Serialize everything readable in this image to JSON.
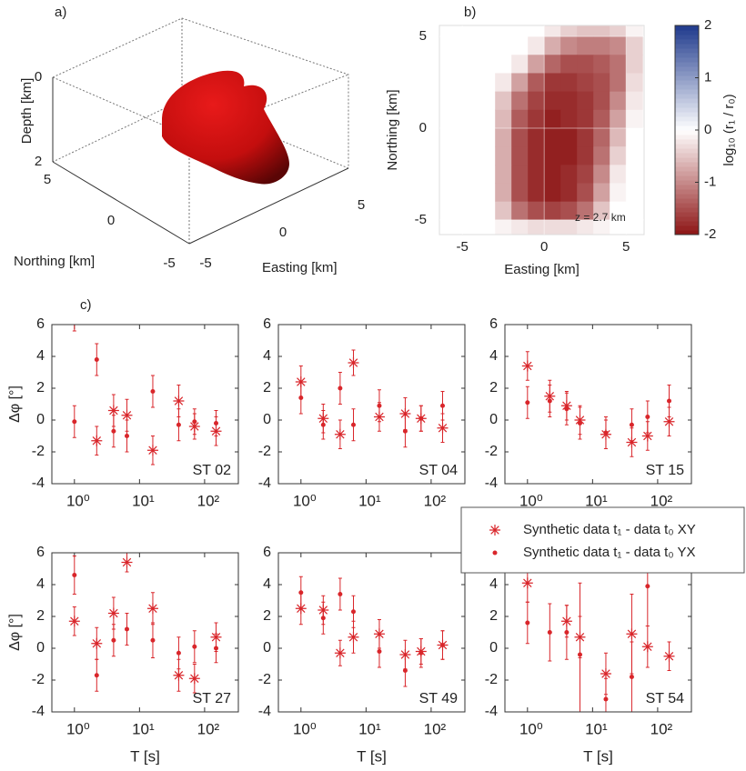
{
  "chart_data": [
    {
      "type": "surface3d",
      "label": "a)",
      "xlabel": "Easting [km]",
      "ylabel": "Northing [km]",
      "zlabel": "Depth [km]",
      "xticks": [
        -5,
        0,
        5
      ],
      "yticks": [
        5,
        0,
        -5
      ],
      "zticks": [
        0,
        2
      ]
    },
    {
      "type": "heatmap",
      "label": "b)",
      "xlabel": "Easting [km]",
      "ylabel": "Northing [km]",
      "xlim": [
        -6.4,
        6.1
      ],
      "ylim": [
        -5.8,
        5.6
      ],
      "xticks": [
        -5,
        0,
        5
      ],
      "yticks": [
        -5,
        0,
        5
      ],
      "grid": true,
      "annotation": "z = 2.7 km",
      "x": [
        -2.5,
        -1.5,
        -0.5,
        0.5,
        1.5,
        2.5,
        3.5,
        4.5,
        5.5
      ],
      "y": [
        5.5,
        4.5,
        3.5,
        2.5,
        1.5,
        0.5,
        -0.5,
        -1.5,
        -2.5,
        -3.5,
        -4.5,
        -5.5
      ],
      "z": [
        [
          0,
          0,
          0,
          -0.2,
          -0.4,
          -0.5,
          -0.5,
          -0.4,
          -0.1
        ],
        [
          0,
          0,
          -0.2,
          -0.7,
          -1,
          -1.1,
          -1.1,
          -1,
          -0.4
        ],
        [
          0,
          -0.2,
          -0.8,
          -1.3,
          -1.5,
          -1.5,
          -1.4,
          -1.2,
          -0.4
        ],
        [
          -0.2,
          -0.8,
          -1.4,
          -1.7,
          -1.7,
          -1.6,
          -1.5,
          -1.2,
          -0.3
        ],
        [
          -0.5,
          -1.2,
          -1.6,
          -1.8,
          -1.8,
          -1.7,
          -1.5,
          -1,
          -0.2
        ],
        [
          -0.6,
          -1.4,
          -1.7,
          -1.9,
          -1.8,
          -1.7,
          -1.4,
          -0.8,
          -0.1
        ],
        [
          -0.7,
          -1.5,
          -1.8,
          -1.9,
          -1.9,
          -1.7,
          -1.3,
          -0.6,
          0
        ],
        [
          -0.7,
          -1.5,
          -1.8,
          -1.9,
          -1.9,
          -1.7,
          -1.2,
          -0.4,
          0
        ],
        [
          -0.7,
          -1.5,
          -1.8,
          -1.9,
          -1.8,
          -1.6,
          -1,
          -0.2,
          0
        ],
        [
          -0.7,
          -1.5,
          -1.8,
          -1.9,
          -1.8,
          -1.5,
          -0.8,
          -0.1,
          0
        ],
        [
          -0.5,
          -1.2,
          -1.5,
          -1.6,
          -1.5,
          -1.2,
          -0.5,
          0,
          0
        ],
        [
          -0.1,
          -0.2,
          -0.3,
          -0.3,
          -0.3,
          -0.2,
          -0.1,
          0,
          0
        ]
      ],
      "colorbar": {
        "label": "log₁₀ (r₁ / r₀)",
        "lim": [
          -2,
          2
        ],
        "ticks": [
          -2,
          -1,
          0,
          1,
          2
        ],
        "low_color": "#8c1414",
        "mid_color": "#ffffff",
        "high_color": "#1f3a8c"
      }
    },
    {
      "type": "errorbar",
      "label": "c)",
      "xlabel": "T [s]",
      "ylabel": "Δφ [°]",
      "xscale": "log",
      "xlim": [
        0.45,
        330
      ],
      "ylim": [
        -4,
        6
      ],
      "xticks": [
        {
          "value": 1,
          "label": "10⁰"
        },
        {
          "value": 10,
          "label": "10¹"
        },
        {
          "value": 100,
          "label": "10²"
        }
      ],
      "yticks": [
        -4,
        -2,
        0,
        2,
        4,
        6
      ],
      "x": [
        1,
        2.2,
        4,
        6.4,
        16,
        40,
        70,
        150
      ],
      "series": [
        {
          "name": "Synthetic data t₁ - data t₀ XY",
          "color": "#d9262b",
          "marker": "asterisk"
        },
        {
          "name": "Synthetic data t₁ - data t₀ YX",
          "color": "#d9262b",
          "marker": "dot"
        }
      ],
      "panels": [
        {
          "name": "ST 02",
          "series": [
            {
              "values": [
                6.6,
                -1.3,
                0.6,
                0.3,
                -1.9,
                1.2,
                -0.4,
                -0.7
              ],
              "errors": [
                1,
                0.9,
                1,
                1,
                0.9,
                1,
                0.8,
                0.9
              ]
            },
            {
              "values": [
                -0.1,
                3.8,
                -0.7,
                -1,
                1.8,
                -0.3,
                -0.1,
                -0.2
              ],
              "errors": [
                1,
                1,
                1,
                1,
                1,
                1,
                0.8,
                0.8
              ]
            }
          ]
        },
        {
          "name": "ST 04",
          "series": [
            {
              "values": [
                2.4,
                0.1,
                -0.9,
                3.6,
                0.2,
                0.4,
                0.1,
                -0.5
              ],
              "errors": [
                1,
                0.9,
                0.9,
                0.8,
                0.9,
                1,
                0.8,
                0.9
              ]
            },
            {
              "values": [
                1.4,
                -0.3,
                2,
                -0.3,
                0.9,
                -0.7,
                0.1,
                0.9
              ],
              "errors": [
                1,
                0.9,
                1,
                1,
                1,
                1,
                0.8,
                0.9
              ]
            }
          ]
        },
        {
          "name": "ST 15",
          "series": [
            {
              "values": [
                3.4,
                1.5,
                0.9,
                0,
                -0.9,
                -1.4,
                -1,
                -0.1
              ],
              "errors": [
                0.9,
                1,
                0.9,
                0.9,
                0.9,
                0.9,
                0.9,
                0.9
              ]
            },
            {
              "values": [
                1.1,
                1.2,
                0.7,
                -0.2,
                -0.8,
                -0.3,
                0.2,
                1.2
              ],
              "errors": [
                1,
                1,
                1,
                1,
                1,
                1,
                1,
                1
              ]
            }
          ]
        },
        {
          "name": "ST 27",
          "series": [
            {
              "values": [
                1.7,
                0.3,
                2.2,
                5.4,
                2.5,
                -1.7,
                -1.9,
                0.7
              ],
              "errors": [
                0.9,
                1,
                1,
                0.6,
                1,
                1,
                0.9,
                0.9
              ]
            },
            {
              "values": [
                4.6,
                -1.7,
                0.5,
                1.2,
                0.5,
                -0.3,
                0.1,
                0
              ],
              "errors": [
                1.2,
                1,
                1,
                1,
                1.1,
                1,
                1,
                0.9
              ]
            }
          ]
        },
        {
          "name": "ST 49",
          "series": [
            {
              "values": [
                2.5,
                2.4,
                -0.3,
                0.7,
                0.9,
                -0.4,
                -0.2,
                0.2
              ],
              "errors": [
                1,
                0.9,
                0.8,
                1,
                0.9,
                0.9,
                0.8,
                0.9
              ]
            },
            {
              "values": [
                3.5,
                1.9,
                3.4,
                2.3,
                -0.2,
                -1.4,
                -0.3,
                0.2
              ],
              "errors": [
                1,
                1,
                1,
                1,
                1,
                1,
                0.9,
                0.9
              ]
            }
          ]
        },
        {
          "name": "ST 54",
          "series": [
            {
              "values": [
                4.1,
                6.6,
                1.7,
                0.7,
                -1.6,
                0.9,
                0.1,
                -0.5
              ],
              "errors": [
                1.2,
                1.5,
                1,
                1.3,
                1.3,
                2.5,
                1.3,
                0.9
              ]
            },
            {
              "values": [
                1.6,
                1,
                1,
                -0.4,
                -3.2,
                -1.8,
                3.9,
                null
              ],
              "errors": [
                1.3,
                1.8,
                1.7,
                4.5,
                1.3,
                2.2,
                2.5,
                null
              ]
            }
          ]
        }
      ]
    }
  ]
}
